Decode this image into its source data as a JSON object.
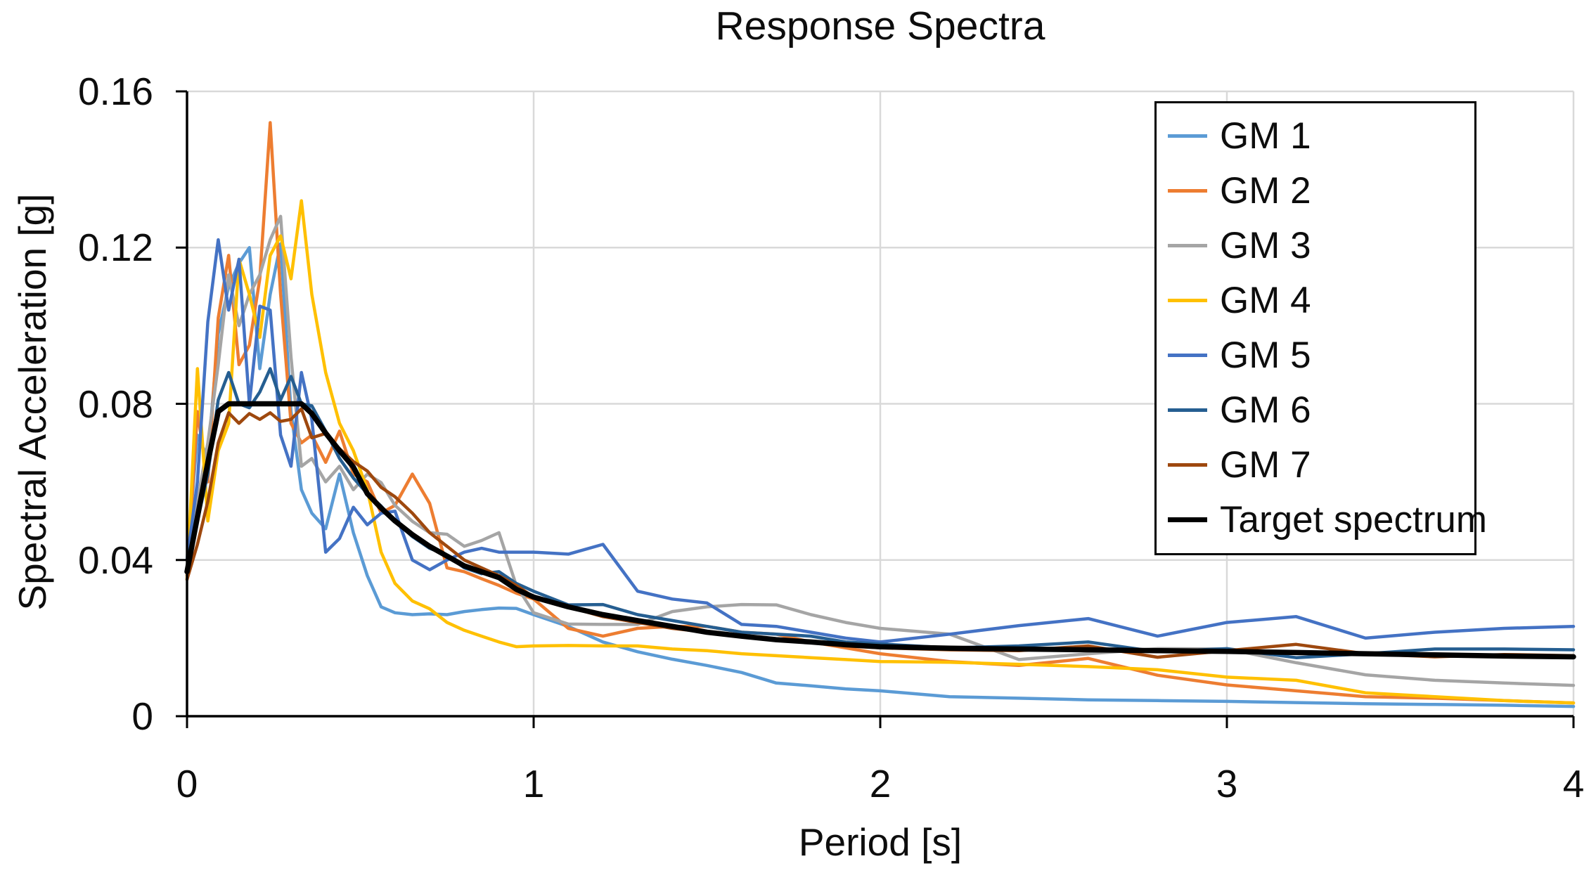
{
  "title": "Response Spectra",
  "axes": {
    "x_label": "Period [s]",
    "y_label": "Spectral Acceleration [g]",
    "x_tick_labels": [
      "0",
      "1",
      "2",
      "3",
      "4"
    ],
    "y_tick_labels": [
      "0",
      "0.04",
      "0.08",
      "0.12",
      "0.16"
    ]
  },
  "colors": {
    "background": "#ffffff",
    "gridline": "#d9d9d9",
    "axis": "#000000",
    "text": "#0d0d0d",
    "legend_border": "#000000"
  },
  "chart_data": {
    "type": "line",
    "title": "Response Spectra",
    "xlabel": "Period [s]",
    "ylabel": "Spectral Acceleration [g]",
    "xlim": [
      0,
      4
    ],
    "ylim": [
      0,
      0.16
    ],
    "x_ticks": [
      0,
      1,
      2,
      3,
      4
    ],
    "y_ticks": [
      0,
      0.04,
      0.08,
      0.12,
      0.16
    ],
    "grid": true,
    "legend_position": "upper right",
    "x": [
      0,
      0.03,
      0.06,
      0.09,
      0.12,
      0.15,
      0.18,
      0.21,
      0.24,
      0.27,
      0.3,
      0.33,
      0.36,
      0.4,
      0.44,
      0.48,
      0.52,
      0.56,
      0.6,
      0.65,
      0.7,
      0.75,
      0.8,
      0.85,
      0.9,
      0.95,
      1.0,
      1.1,
      1.2,
      1.3,
      1.4,
      1.5,
      1.6,
      1.7,
      1.8,
      1.9,
      2.0,
      2.2,
      2.4,
      2.6,
      2.8,
      3.0,
      3.2,
      3.4,
      3.6,
      3.8,
      4.0
    ],
    "series": [
      {
        "name": "GM 1",
        "color": "#5B9BD5",
        "line_width": 4.5,
        "values": [
          0.04,
          0.072,
          0.066,
          0.098,
          0.11,
          0.116,
          0.12,
          0.089,
          0.108,
          0.121,
          0.078,
          0.058,
          0.052,
          0.048,
          0.062,
          0.047,
          0.036,
          0.028,
          0.0265,
          0.026,
          0.0262,
          0.026,
          0.0268,
          0.0273,
          0.0277,
          0.0276,
          0.026,
          0.023,
          0.019,
          0.0165,
          0.0146,
          0.013,
          0.0112,
          0.0085,
          0.0078,
          0.007,
          0.0065,
          0.005,
          0.0046,
          0.0042,
          0.004,
          0.0038,
          0.0035,
          0.0032,
          0.003,
          0.0028,
          0.0025
        ]
      },
      {
        "name": "GM 2",
        "color": "#ED7D31",
        "line_width": 4.5,
        "values": [
          0.036,
          0.078,
          0.06,
          0.102,
          0.118,
          0.09,
          0.095,
          0.112,
          0.152,
          0.108,
          0.075,
          0.07,
          0.072,
          0.065,
          0.073,
          0.062,
          0.06,
          0.052,
          0.054,
          0.062,
          0.0545,
          0.038,
          0.037,
          0.0352,
          0.0335,
          0.0315,
          0.03,
          0.0225,
          0.0205,
          0.0225,
          0.023,
          0.023,
          0.0215,
          0.021,
          0.019,
          0.0175,
          0.016,
          0.014,
          0.013,
          0.0148,
          0.0105,
          0.008,
          0.0065,
          0.005,
          0.0046,
          0.004,
          0.0034
        ]
      },
      {
        "name": "GM 3",
        "color": "#A5A5A5",
        "line_width": 4.5,
        "values": [
          0.037,
          0.055,
          0.07,
          0.09,
          0.113,
          0.1,
          0.108,
          0.113,
          0.122,
          0.128,
          0.092,
          0.064,
          0.066,
          0.06,
          0.064,
          0.058,
          0.062,
          0.0598,
          0.054,
          0.0499,
          0.047,
          0.0466,
          0.0435,
          0.045,
          0.047,
          0.0335,
          0.0265,
          0.0236,
          0.0235,
          0.0235,
          0.0268,
          0.028,
          0.0286,
          0.0285,
          0.026,
          0.024,
          0.0225,
          0.021,
          0.0145,
          0.016,
          0.0173,
          0.0172,
          0.0137,
          0.0106,
          0.0092,
          0.0085,
          0.0079
        ]
      },
      {
        "name": "GM 4",
        "color": "#FFC000",
        "line_width": 4.5,
        "values": [
          0.035,
          0.089,
          0.05,
          0.068,
          0.075,
          0.117,
          0.108,
          0.097,
          0.118,
          0.123,
          0.112,
          0.132,
          0.108,
          0.088,
          0.075,
          0.068,
          0.058,
          0.042,
          0.034,
          0.0295,
          0.0275,
          0.024,
          0.022,
          0.0205,
          0.019,
          0.0178,
          0.018,
          0.0181,
          0.018,
          0.018,
          0.0172,
          0.0168,
          0.016,
          0.0155,
          0.015,
          0.0145,
          0.014,
          0.0138,
          0.0133,
          0.0127,
          0.0119,
          0.01,
          0.0092,
          0.006,
          0.005,
          0.004,
          0.0034
        ]
      },
      {
        "name": "GM 5",
        "color": "#4472C4",
        "line_width": 4.5,
        "values": [
          0.04,
          0.06,
          0.101,
          0.122,
          0.104,
          0.117,
          0.08,
          0.105,
          0.104,
          0.072,
          0.064,
          0.088,
          0.076,
          0.042,
          0.0455,
          0.0535,
          0.049,
          0.052,
          0.0525,
          0.04,
          0.0375,
          0.04,
          0.042,
          0.043,
          0.042,
          0.042,
          0.042,
          0.0415,
          0.044,
          0.032,
          0.03,
          0.029,
          0.0235,
          0.023,
          0.0215,
          0.02,
          0.019,
          0.021,
          0.0232,
          0.025,
          0.0205,
          0.024,
          0.0255,
          0.02,
          0.0215,
          0.0225,
          0.023
        ]
      },
      {
        "name": "GM 6",
        "color": "#255E91",
        "line_width": 4.5,
        "values": [
          0.04,
          0.05,
          0.062,
          0.081,
          0.088,
          0.08,
          0.079,
          0.083,
          0.089,
          0.081,
          0.087,
          0.08,
          0.0795,
          0.073,
          0.066,
          0.061,
          0.057,
          0.0538,
          0.05,
          0.046,
          0.043,
          0.0412,
          0.038,
          0.0365,
          0.037,
          0.034,
          0.032,
          0.0285,
          0.0286,
          0.026,
          0.0245,
          0.023,
          0.0215,
          0.021,
          0.0205,
          0.019,
          0.0185,
          0.0175,
          0.018,
          0.019,
          0.0165,
          0.0173,
          0.015,
          0.016,
          0.0172,
          0.0172,
          0.017
        ]
      },
      {
        "name": "GM 7",
        "color": "#9E480E",
        "line_width": 4.5,
        "values": [
          0.035,
          0.044,
          0.055,
          0.07,
          0.0777,
          0.075,
          0.0775,
          0.076,
          0.0777,
          0.0755,
          0.076,
          0.0787,
          0.0713,
          0.0724,
          0.0685,
          0.0652,
          0.0628,
          0.0586,
          0.0562,
          0.052,
          0.047,
          0.0435,
          0.04,
          0.038,
          0.036,
          0.0335,
          0.0305,
          0.028,
          0.0255,
          0.024,
          0.0225,
          0.0215,
          0.0205,
          0.0195,
          0.019,
          0.018,
          0.0175,
          0.017,
          0.0168,
          0.018,
          0.0151,
          0.0168,
          0.0184,
          0.016,
          0.0152,
          0.0158,
          0.0155
        ]
      },
      {
        "name": "Target spectrum",
        "color": "#000000",
        "line_width": 7.5,
        "values": [
          0.037,
          0.051,
          0.065,
          0.078,
          0.08,
          0.08,
          0.08,
          0.08,
          0.08,
          0.08,
          0.08,
          0.08,
          0.0775,
          0.0725,
          0.068,
          0.0638,
          0.057,
          0.0533,
          0.05,
          0.0465,
          0.0435,
          0.041,
          0.0385,
          0.037,
          0.0355,
          0.0325,
          0.0305,
          0.028,
          0.026,
          0.0245,
          0.023,
          0.0215,
          0.0205,
          0.0196,
          0.019,
          0.0183,
          0.0178,
          0.0174,
          0.0172,
          0.017,
          0.0168,
          0.0166,
          0.0163,
          0.016,
          0.0157,
          0.0154,
          0.0152
        ]
      }
    ]
  }
}
